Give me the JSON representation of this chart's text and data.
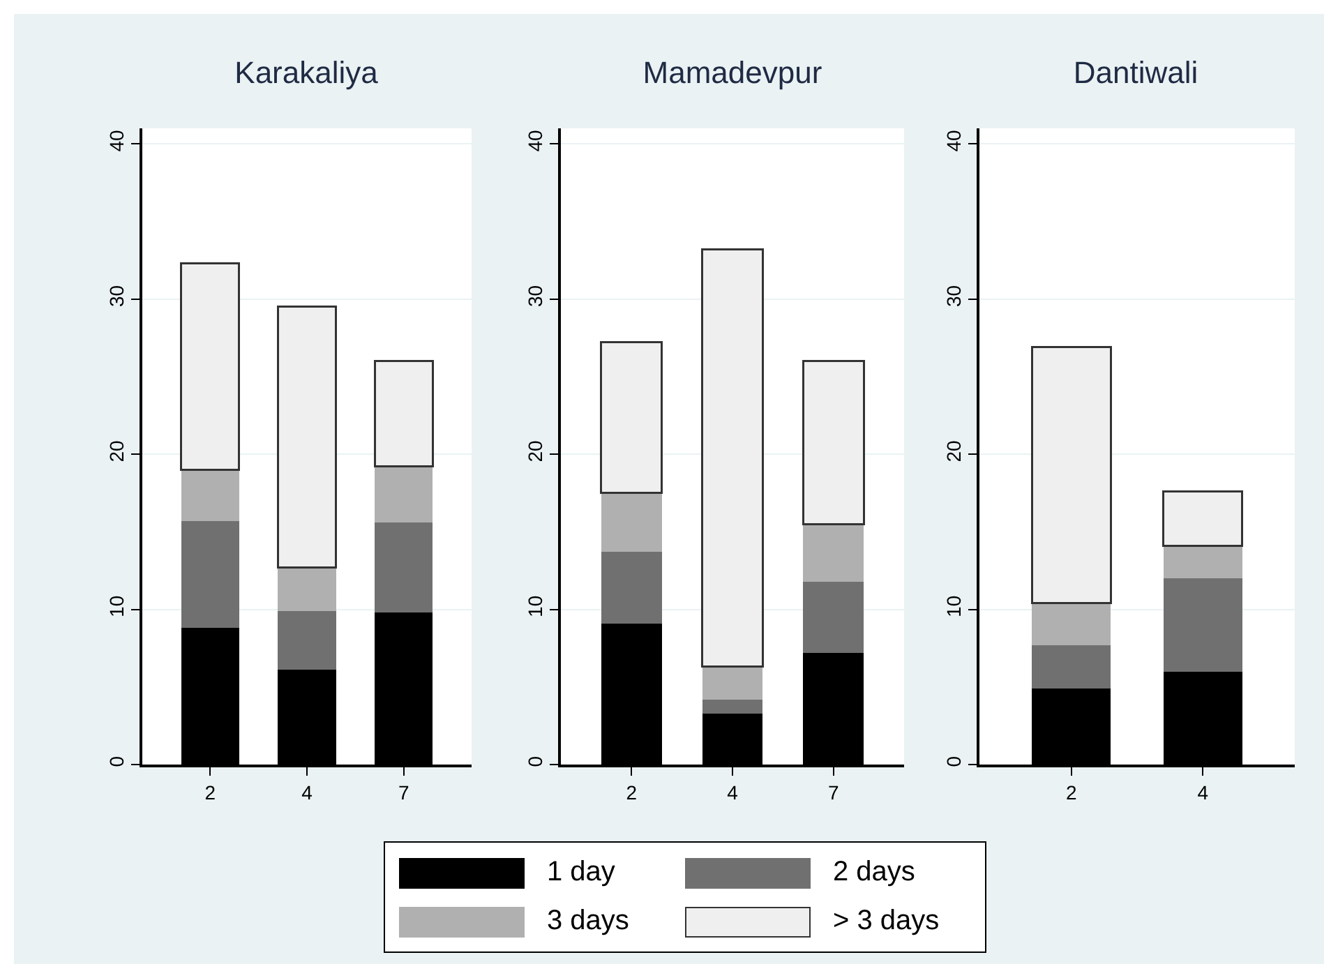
{
  "chart_data": [
    {
      "type": "bar",
      "title": "Karakaliya",
      "categories": [
        "2",
        "4",
        "7"
      ],
      "stacked": true,
      "ylim": [
        0,
        41
      ],
      "yticks": [
        0,
        10,
        20,
        30,
        40
      ],
      "grid": "y",
      "legend": "bottom",
      "series": [
        {
          "name": "1 day",
          "color": "#000000",
          "values": [
            8.8,
            6.1,
            9.8
          ]
        },
        {
          "name": "2 days",
          "color": "#707070",
          "values": [
            6.9,
            3.8,
            5.8
          ]
        },
        {
          "name": "3 days",
          "color": "#b0b0b0",
          "values": [
            3.3,
            2.8,
            3.6
          ]
        },
        {
          "name": "> 3 days",
          "color": "#efefef",
          "values": [
            13.3,
            16.8,
            6.8
          ]
        }
      ]
    },
    {
      "type": "bar",
      "title": "Mamadevpur",
      "categories": [
        "2",
        "4",
        "7"
      ],
      "stacked": true,
      "ylim": [
        0,
        41
      ],
      "yticks": [
        0,
        10,
        20,
        30,
        40
      ],
      "grid": "y",
      "series": [
        {
          "color": "#000000",
          "values": [
            9.1,
            3.3,
            7.2
          ]
        },
        {
          "color": "#707070",
          "values": [
            4.6,
            0.9,
            4.6
          ]
        },
        {
          "color": "#b0b0b0",
          "values": [
            3.8,
            2.1,
            3.7
          ]
        },
        {
          "color": "#efefef",
          "values": [
            9.7,
            26.9,
            10.5
          ]
        }
      ]
    },
    {
      "type": "bar",
      "title": "Dantiwali",
      "categories": [
        "2",
        "4"
      ],
      "stacked": true,
      "ylim": [
        0,
        41
      ],
      "yticks": [
        0,
        10,
        20,
        30,
        40
      ],
      "grid": "y",
      "series": [
        {
          "color": "#000000",
          "values": [
            4.9,
            6.0
          ]
        },
        {
          "color": "#707070",
          "values": [
            2.8,
            6.0
          ]
        },
        {
          "color": "#b0b0b0",
          "values": [
            2.7,
            2.1
          ]
        },
        {
          "color": "#efefef",
          "values": [
            16.5,
            3.5
          ]
        }
      ]
    }
  ]
}
